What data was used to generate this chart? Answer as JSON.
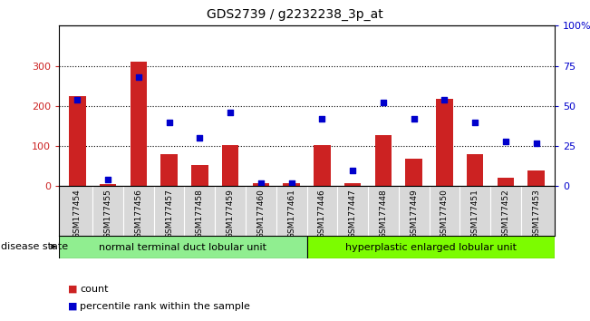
{
  "title": "GDS2739 / g2232238_3p_at",
  "samples": [
    "GSM177454",
    "GSM177455",
    "GSM177456",
    "GSM177457",
    "GSM177458",
    "GSM177459",
    "GSM177460",
    "GSM177461",
    "GSM177446",
    "GSM177447",
    "GSM177448",
    "GSM177449",
    "GSM177450",
    "GSM177451",
    "GSM177452",
    "GSM177453"
  ],
  "counts": [
    225,
    5,
    310,
    80,
    52,
    102,
    8,
    8,
    102,
    8,
    128,
    68,
    218,
    80,
    22,
    40
  ],
  "percentiles": [
    54,
    4,
    68,
    40,
    30,
    46,
    2,
    2,
    42,
    10,
    52,
    42,
    54,
    40,
    28,
    27
  ],
  "group1_label": "normal terminal duct lobular unit",
  "group2_label": "hyperplastic enlarged lobular unit",
  "group1_count": 8,
  "group2_count": 8,
  "group1_color": "#90EE90",
  "group2_color": "#7CFC00",
  "bar_color": "#CC2222",
  "dot_color": "#0000CC",
  "ylim_left": [
    0,
    400
  ],
  "ylim_right": [
    0,
    100
  ],
  "yticks_left": [
    0,
    100,
    200,
    300,
    400
  ],
  "yticks_right": [
    0,
    25,
    50,
    75,
    100
  ],
  "grid_values": [
    100,
    200,
    300
  ],
  "legend_count_label": "count",
  "legend_pct_label": "percentile rank within the sample",
  "disease_state_label": "disease state",
  "background_color": "#ffffff"
}
